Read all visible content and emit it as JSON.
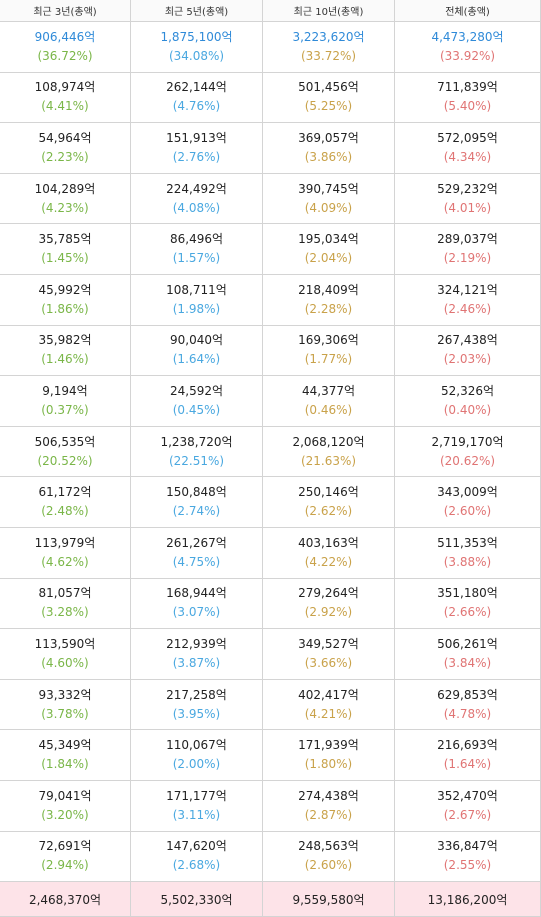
{
  "table": {
    "headers": [
      "최근 3년(총액)",
      "최근 5년(총액)",
      "최근 10년(총액)",
      "전체(총액)"
    ],
    "rows": [
      [
        {
          "amount": "906,446억",
          "share": "(36.72%)"
        },
        {
          "amount": "1,875,100억",
          "share": "(34.08%)"
        },
        {
          "amount": "3,223,620억",
          "share": "(33.72%)"
        },
        {
          "amount": "4,473,280억",
          "share": "(33.92%)"
        }
      ],
      [
        {
          "amount": "108,974억",
          "share": "(4.41%)"
        },
        {
          "amount": "262,144억",
          "share": "(4.76%)"
        },
        {
          "amount": "501,456억",
          "share": "(5.25%)"
        },
        {
          "amount": "711,839억",
          "share": "(5.40%)"
        }
      ],
      [
        {
          "amount": "54,964억",
          "share": "(2.23%)"
        },
        {
          "amount": "151,913억",
          "share": "(2.76%)"
        },
        {
          "amount": "369,057억",
          "share": "(3.86%)"
        },
        {
          "amount": "572,095억",
          "share": "(4.34%)"
        }
      ],
      [
        {
          "amount": "104,289억",
          "share": "(4.23%)"
        },
        {
          "amount": "224,492억",
          "share": "(4.08%)"
        },
        {
          "amount": "390,745억",
          "share": "(4.09%)"
        },
        {
          "amount": "529,232억",
          "share": "(4.01%)"
        }
      ],
      [
        {
          "amount": "35,785억",
          "share": "(1.45%)"
        },
        {
          "amount": "86,496억",
          "share": "(1.57%)"
        },
        {
          "amount": "195,034억",
          "share": "(2.04%)"
        },
        {
          "amount": "289,037억",
          "share": "(2.19%)"
        }
      ],
      [
        {
          "amount": "45,992억",
          "share": "(1.86%)"
        },
        {
          "amount": "108,711억",
          "share": "(1.98%)"
        },
        {
          "amount": "218,409억",
          "share": "(2.28%)"
        },
        {
          "amount": "324,121억",
          "share": "(2.46%)"
        }
      ],
      [
        {
          "amount": "35,982억",
          "share": "(1.46%)"
        },
        {
          "amount": "90,040억",
          "share": "(1.64%)"
        },
        {
          "amount": "169,306억",
          "share": "(1.77%)"
        },
        {
          "amount": "267,438억",
          "share": "(2.03%)"
        }
      ],
      [
        {
          "amount": "9,194억",
          "share": "(0.37%)"
        },
        {
          "amount": "24,592억",
          "share": "(0.45%)"
        },
        {
          "amount": "44,377억",
          "share": "(0.46%)"
        },
        {
          "amount": "52,326억",
          "share": "(0.40%)"
        }
      ],
      [
        {
          "amount": "506,535억",
          "share": "(20.52%)"
        },
        {
          "amount": "1,238,720억",
          "share": "(22.51%)"
        },
        {
          "amount": "2,068,120억",
          "share": "(21.63%)"
        },
        {
          "amount": "2,719,170억",
          "share": "(20.62%)"
        }
      ],
      [
        {
          "amount": "61,172억",
          "share": "(2.48%)"
        },
        {
          "amount": "150,848억",
          "share": "(2.74%)"
        },
        {
          "amount": "250,146억",
          "share": "(2.62%)"
        },
        {
          "amount": "343,009억",
          "share": "(2.60%)"
        }
      ],
      [
        {
          "amount": "113,979억",
          "share": "(4.62%)"
        },
        {
          "amount": "261,267억",
          "share": "(4.75%)"
        },
        {
          "amount": "403,163억",
          "share": "(4.22%)"
        },
        {
          "amount": "511,353억",
          "share": "(3.88%)"
        }
      ],
      [
        {
          "amount": "81,057억",
          "share": "(3.28%)"
        },
        {
          "amount": "168,944억",
          "share": "(3.07%)"
        },
        {
          "amount": "279,264억",
          "share": "(2.92%)"
        },
        {
          "amount": "351,180억",
          "share": "(2.66%)"
        }
      ],
      [
        {
          "amount": "113,590억",
          "share": "(4.60%)"
        },
        {
          "amount": "212,939억",
          "share": "(3.87%)"
        },
        {
          "amount": "349,527억",
          "share": "(3.66%)"
        },
        {
          "amount": "506,261억",
          "share": "(3.84%)"
        }
      ],
      [
        {
          "amount": "93,332억",
          "share": "(3.78%)"
        },
        {
          "amount": "217,258억",
          "share": "(3.95%)"
        },
        {
          "amount": "402,417억",
          "share": "(4.21%)"
        },
        {
          "amount": "629,853억",
          "share": "(4.78%)"
        }
      ],
      [
        {
          "amount": "45,349억",
          "share": "(1.84%)"
        },
        {
          "amount": "110,067억",
          "share": "(2.00%)"
        },
        {
          "amount": "171,939억",
          "share": "(1.80%)"
        },
        {
          "amount": "216,693억",
          "share": "(1.64%)"
        }
      ],
      [
        {
          "amount": "79,041억",
          "share": "(3.20%)"
        },
        {
          "amount": "171,177억",
          "share": "(3.11%)"
        },
        {
          "amount": "274,438억",
          "share": "(2.87%)"
        },
        {
          "amount": "352,470억",
          "share": "(2.67%)"
        }
      ],
      [
        {
          "amount": "72,691억",
          "share": "(2.94%)"
        },
        {
          "amount": "147,620억",
          "share": "(2.68%)"
        },
        {
          "amount": "248,563억",
          "share": "(2.60%)"
        },
        {
          "amount": "336,847억",
          "share": "(2.55%)"
        }
      ]
    ],
    "totals": [
      "2,468,370억",
      "5,502,330억",
      "9,559,580억",
      "13,186,200억"
    ]
  }
}
